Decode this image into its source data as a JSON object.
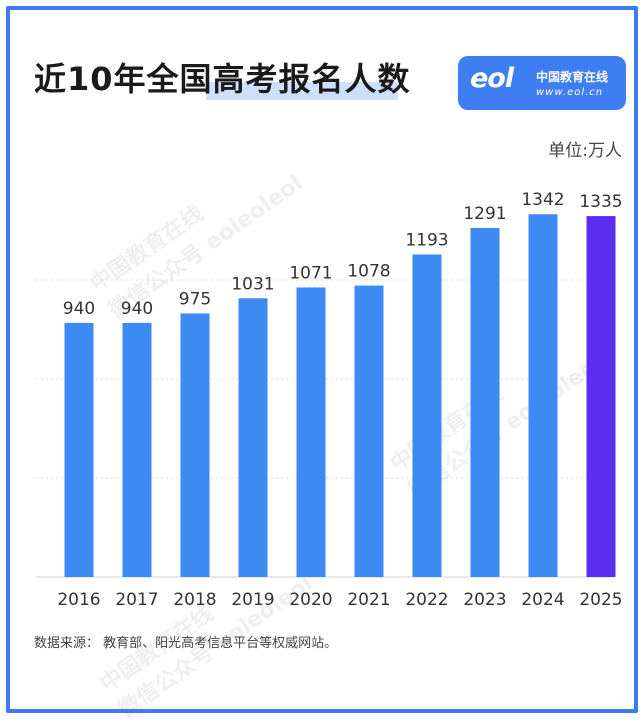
{
  "title": "近10年全国高考报名人数",
  "logo": {
    "mark": "eol",
    "name": "中国教育在线",
    "url": "www.eol.cn"
  },
  "unit_label": "单位:万人",
  "source": "数据来源： 教育部、阳光高考信息平台等权威网站。",
  "watermark": {
    "line1": "中国教育在线",
    "line2": "微信公众号 eoleoleol"
  },
  "colors": {
    "bar": "#3d8bf2",
    "bar_highlight": "#5a2df0",
    "frame": "#3d7bf1"
  },
  "chart_data": {
    "type": "bar",
    "categories": [
      "2016",
      "2017",
      "2018",
      "2019",
      "2020",
      "2021",
      "2022",
      "2023",
      "2024",
      "2025"
    ],
    "values": [
      940,
      940,
      975,
      1031,
      1071,
      1078,
      1193,
      1291,
      1342,
      1335
    ],
    "highlight_index": 9,
    "title": "近10年全国高考报名人数",
    "ylim": [
      0,
      1450
    ],
    "grid": true
  }
}
